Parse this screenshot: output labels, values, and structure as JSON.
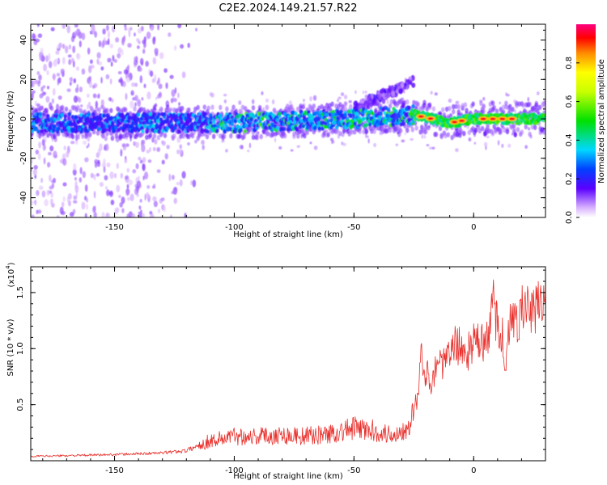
{
  "title": "C2E2.2024.149.21.57.R22",
  "colors": {
    "snr_line": "#e8302c",
    "background": "#ffffff",
    "axis": "#000000"
  },
  "chart_data": [
    {
      "type": "heatmap",
      "xlabel": "Height of straight line (km)",
      "ylabel": "Frequency (Hz)",
      "xlim": [
        -185,
        30
      ],
      "ylim": [
        -50,
        48
      ],
      "x_ticks": [
        -150,
        -100,
        -50,
        0
      ],
      "y_ticks": [
        -40,
        -20,
        0,
        20,
        40
      ],
      "grid": false,
      "colorbar": {
        "label": "Normalized spectral amplitude",
        "range": [
          0.0,
          1.0
        ],
        "ticks": [
          0.0,
          0.2,
          0.4,
          0.6,
          0.8
        ]
      },
      "features": [
        {
          "name": "main band",
          "center_freq": [
            [
              -185,
              -2
            ],
            [
              -100,
              -2
            ],
            [
              -50,
              0
            ],
            [
              -25,
              2
            ],
            [
              -10,
              -2
            ],
            [
              0,
              0
            ],
            [
              30,
              0
            ]
          ],
          "half_width_hz": 5
        },
        {
          "name": "upward branch",
          "x_range": [
            -50,
            -25
          ],
          "freq_range": [
            5,
            19
          ]
        },
        {
          "name": "scattered noise",
          "x_range": [
            -185,
            -110
          ],
          "freq_range": [
            -50,
            48
          ]
        },
        {
          "name": "peak amplitude region",
          "x_range": [
            -25,
            30
          ],
          "freq_range": [
            -3,
            3
          ],
          "amplitude": 0.95
        }
      ]
    },
    {
      "type": "line",
      "xlabel": "Height of straight line (km)",
      "ylabel": "SNR (10 * v/v)",
      "y_multiplier": "(x10^4)",
      "y_multiplier_base": "(x10",
      "y_multiplier_exp": "4",
      "y_multiplier_close": ")",
      "xlim": [
        -185,
        30
      ],
      "ylim": [
        0,
        17300
      ],
      "x_ticks": [
        -150,
        -100,
        -50,
        0
      ],
      "y_ticks": [
        5000,
        10000,
        15000
      ],
      "y_tick_labels": [
        "0.5",
        "1.0",
        "1.5"
      ],
      "grid": false,
      "series": [
        {
          "x": [
            -185,
            -170,
            -150,
            -130,
            -120,
            -110,
            -100,
            -90,
            -80,
            -70,
            -60,
            -50,
            -40,
            -35,
            -30,
            -27,
            -25,
            -23,
            -22,
            -21,
            -20,
            -18,
            -15,
            -12,
            -10,
            -8,
            -5,
            -3,
            0,
            3,
            5,
            7,
            8,
            9,
            10,
            12,
            13,
            15,
            18,
            20,
            23,
            25,
            28,
            30
          ],
          "y": [
            400,
            450,
            550,
            700,
            900,
            1800,
            2200,
            2200,
            2300,
            2200,
            2400,
            2900,
            2600,
            2300,
            2600,
            3500,
            4500,
            6000,
            9500,
            7500,
            8000,
            7000,
            9000,
            8500,
            9500,
            10500,
            10000,
            9500,
            10500,
            10500,
            10500,
            11500,
            15500,
            13000,
            12500,
            11000,
            8500,
            12000,
            12500,
            13500,
            13500,
            13000,
            14500,
            14500
          ]
        }
      ]
    }
  ]
}
